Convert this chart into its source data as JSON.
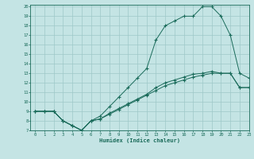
{
  "xlabel": "Humidex (Indice chaleur)",
  "background_color": "#c4e4e4",
  "grid_color": "#9ec8c8",
  "line_color": "#1a6b5a",
  "xlim": [
    -0.5,
    23
  ],
  "ylim": [
    7,
    20.2
  ],
  "xticks": [
    0,
    1,
    2,
    3,
    4,
    5,
    6,
    7,
    8,
    9,
    10,
    11,
    12,
    13,
    14,
    15,
    16,
    17,
    18,
    19,
    20,
    21,
    22,
    23
  ],
  "yticks": [
    7,
    8,
    9,
    10,
    11,
    12,
    13,
    14,
    15,
    16,
    17,
    18,
    19,
    20
  ],
  "line1_x": [
    0,
    1,
    2,
    3,
    4,
    5,
    6,
    7,
    8,
    9,
    10,
    11,
    12,
    13,
    14,
    15,
    16,
    17,
    18,
    19,
    20,
    21,
    22,
    23
  ],
  "line1_y": [
    9,
    9,
    9,
    8,
    7.5,
    7,
    8,
    8.2,
    8.7,
    9.2,
    9.7,
    10.2,
    10.7,
    11.2,
    11.7,
    12.0,
    12.3,
    12.6,
    12.8,
    13.0,
    13.0,
    13.0,
    11.5,
    11.5
  ],
  "line2_x": [
    0,
    1,
    2,
    3,
    4,
    5,
    6,
    7,
    8,
    9,
    10,
    11,
    12,
    13,
    14,
    15,
    16,
    17,
    18,
    19,
    20,
    21,
    22,
    23
  ],
  "line2_y": [
    9,
    9,
    9,
    8,
    7.5,
    7,
    8,
    8.5,
    9.5,
    10.5,
    11.5,
    12.5,
    13.5,
    16.5,
    18,
    18.5,
    19,
    19,
    20,
    20,
    19,
    17,
    13,
    12.5
  ],
  "line3_x": [
    0,
    1,
    2,
    3,
    4,
    5,
    6,
    7,
    8,
    9,
    10,
    11,
    12,
    13,
    14,
    15,
    16,
    17,
    18,
    19,
    20,
    21,
    22,
    23
  ],
  "line3_y": [
    9,
    9,
    9,
    8,
    7.5,
    7,
    8,
    8.2,
    8.8,
    9.3,
    9.8,
    10.3,
    10.8,
    11.5,
    12.0,
    12.3,
    12.6,
    12.9,
    13.0,
    13.2,
    13.0,
    13.0,
    11.5,
    11.5
  ]
}
